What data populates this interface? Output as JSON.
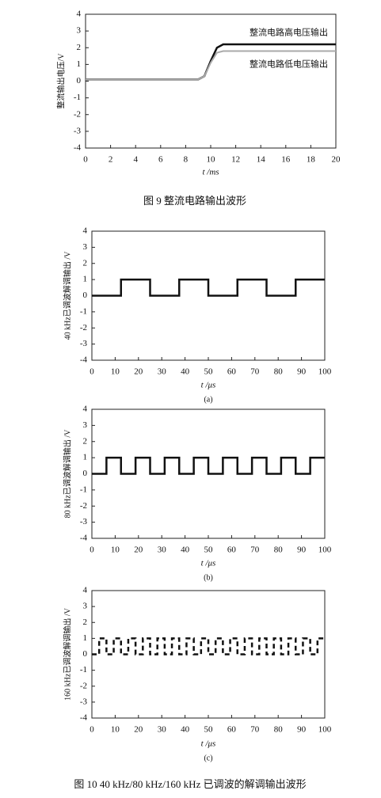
{
  "chart_data": [
    {
      "type": "line",
      "ylabel": "整流输出电压/V",
      "xlabel": "t /ms",
      "caption": "图 9  整流电路输出波形",
      "xlim": [
        0,
        20
      ],
      "xticks": [
        0,
        2,
        4,
        6,
        8,
        10,
        12,
        14,
        16,
        18,
        20
      ],
      "ylim": [
        -4,
        4
      ],
      "yticks": [
        -4,
        -3,
        -2,
        -1,
        0,
        1,
        2,
        3,
        4
      ],
      "x": [
        0,
        9,
        9.5,
        10,
        10.5,
        11,
        20
      ],
      "annotations": [
        "整流电路高电压输出",
        "整流电路低电压输出"
      ],
      "series": [
        {
          "color": "#111111",
          "values": [
            0.1,
            0.1,
            0.3,
            1.2,
            2.0,
            2.2,
            2.2
          ]
        },
        {
          "color": "#aaaaaa",
          "values": [
            0.1,
            0.1,
            0.3,
            1.1,
            1.7,
            1.8,
            1.8
          ]
        }
      ]
    },
    {
      "type": "line",
      "ylabel": "40 kHz已调波解调输出 /V",
      "xlabel": "t /μs",
      "caption": "(a)",
      "xlim": [
        0,
        100
      ],
      "xticks": [
        0,
        10,
        20,
        30,
        40,
        50,
        60,
        70,
        80,
        90,
        100
      ],
      "ylim": [
        -4,
        4
      ],
      "yticks": [
        -4,
        -3,
        -2,
        -1,
        0,
        1,
        2,
        3,
        4
      ],
      "x": [
        0,
        12.5,
        12.5,
        25,
        25,
        37.5,
        37.5,
        50,
        50,
        62.5,
        62.5,
        75,
        75,
        87.5,
        87.5,
        100
      ],
      "series": [
        {
          "color": "#111111",
          "values": [
            0,
            0,
            1,
            1,
            0,
            0,
            1,
            1,
            0,
            0,
            1,
            1,
            0,
            0,
            1,
            1
          ]
        }
      ]
    },
    {
      "type": "line",
      "ylabel": "80 kHz已调波解调输出 /V",
      "xlabel": "t /μs",
      "caption": "(b)",
      "xlim": [
        0,
        100
      ],
      "xticks": [
        0,
        10,
        20,
        30,
        40,
        50,
        60,
        70,
        80,
        90,
        100
      ],
      "ylim": [
        -4,
        4
      ],
      "yticks": [
        -4,
        -3,
        -2,
        -1,
        0,
        1,
        2,
        3,
        4
      ],
      "x": [
        0,
        6.25,
        6.25,
        12.5,
        12.5,
        18.75,
        18.75,
        25,
        25,
        31.25,
        31.25,
        37.5,
        37.5,
        43.75,
        43.75,
        50,
        50,
        56.25,
        56.25,
        62.5,
        62.5,
        68.75,
        68.75,
        75,
        75,
        81.25,
        81.25,
        87.5,
        87.5,
        93.75,
        93.75,
        100
      ],
      "series": [
        {
          "color": "#111111",
          "values": [
            0,
            0,
            1,
            1,
            0,
            0,
            1,
            1,
            0,
            0,
            1,
            1,
            0,
            0,
            1,
            1,
            0,
            0,
            1,
            1,
            0,
            0,
            1,
            1,
            0,
            0,
            1,
            1,
            0,
            0,
            1,
            1
          ]
        }
      ]
    },
    {
      "type": "line",
      "ylabel": "160 kHz已调波解调输出 /V",
      "xlabel": "t /μs",
      "caption": "(c)",
      "dashed": true,
      "xlim": [
        0,
        100
      ],
      "xticks": [
        0,
        10,
        20,
        30,
        40,
        50,
        60,
        70,
        80,
        90,
        100
      ],
      "ylim": [
        -4,
        4
      ],
      "yticks": [
        -4,
        -3,
        -2,
        -1,
        0,
        1,
        2,
        3,
        4
      ],
      "x": [
        0,
        3.125,
        3.125,
        6.25,
        6.25,
        9.375,
        9.375,
        12.5,
        12.5,
        15.625,
        15.625,
        18.75,
        18.75,
        21.875,
        21.875,
        25,
        25,
        28.125,
        28.125,
        31.25,
        31.25,
        34.375,
        34.375,
        37.5,
        37.5,
        40.625,
        40.625,
        43.75,
        43.75,
        46.875,
        46.875,
        50,
        50,
        53.125,
        53.125,
        56.25,
        56.25,
        59.375,
        59.375,
        62.5,
        62.5,
        65.625,
        65.625,
        68.75,
        68.75,
        71.875,
        71.875,
        75,
        75,
        78.125,
        78.125,
        81.25,
        81.25,
        84.375,
        84.375,
        87.5,
        87.5,
        90.625,
        90.625,
        93.75,
        93.75,
        96.875,
        96.875,
        100
      ],
      "series": [
        {
          "color": "#111111",
          "values": [
            0,
            0,
            1,
            1,
            0,
            0,
            1,
            1,
            0,
            0,
            1,
            1,
            0,
            0,
            1,
            1,
            0,
            0,
            1,
            1,
            0,
            0,
            1,
            1,
            0,
            0,
            1,
            1,
            0,
            0,
            1,
            1,
            0,
            0,
            1,
            1,
            0,
            0,
            1,
            1,
            0,
            0,
            1,
            1,
            0,
            0,
            1,
            1,
            0,
            0,
            1,
            1,
            0,
            0,
            1,
            1,
            0,
            0,
            1,
            1,
            0,
            0,
            1,
            1
          ]
        }
      ]
    }
  ],
  "figure_caption": "图 10   40 kHz/80 kHz/160 kHz 已调波的解调输出波形"
}
